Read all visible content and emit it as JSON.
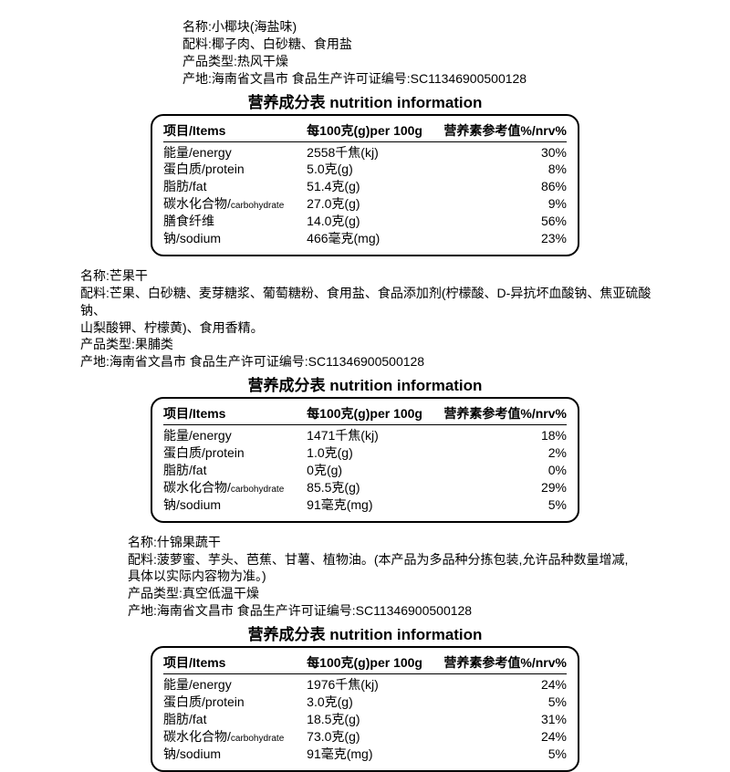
{
  "products": [
    {
      "indentClass": "indent-1",
      "info": [
        "名称:小椰块(海盐味)",
        "配料:椰子肉、白砂糖、食用盐",
        "产品类型:热风干燥",
        "产地:海南省文昌市 食品生产许可证编号:SC11346900500128"
      ],
      "table_title": "营养成分表 nutrition information",
      "headers": {
        "c1": "项目/Items",
        "c2": "每100克(g)per 100g",
        "c3": "营养素参考值%/nrv%"
      },
      "rows": [
        {
          "c1": "能量/energy",
          "c2": "2558千焦(kj)",
          "c3": "30%"
        },
        {
          "c1": "蛋白质/protein",
          "c2": "5.0克(g)",
          "c3": "8%"
        },
        {
          "c1": "脂肪/fat",
          "c2": "51.4克(g)",
          "c3": "86%"
        },
        {
          "c1": "碳水化合物/",
          "c1sub": "carbohydrate",
          "c2": "27.0克(g)",
          "c3": "9%"
        },
        {
          "c1": "膳食纤维",
          "c2": "14.0克(g)",
          "c3": "56%"
        },
        {
          "c1": "钠/sodium",
          "c2": "466毫克(mg)",
          "c3": "23%"
        }
      ]
    },
    {
      "indentClass": "indent-2",
      "info": [
        "名称:芒果干",
        "配料:芒果、白砂糖、麦芽糖浆、葡萄糖粉、食用盐、食品添加剂(柠檬酸、D-异抗坏血酸钠、焦亚硫酸钠、",
        "山梨酸钾、柠檬黄)、食用香精。",
        "产品类型:果脯类",
        "产地:海南省文昌市 食品生产许可证编号:SC11346900500128"
      ],
      "table_title": "营养成分表 nutrition information",
      "headers": {
        "c1": "项目/Items",
        "c2": "每100克(g)per 100g",
        "c3": "营养素参考值%/nrv%"
      },
      "rows": [
        {
          "c1": "能量/energy",
          "c2": "1471千焦(kj)",
          "c3": "18%"
        },
        {
          "c1": "蛋白质/protein",
          "c2": "1.0克(g)",
          "c3": "2%"
        },
        {
          "c1": "脂肪/fat",
          "c2": "0克(g)",
          "c3": "0%"
        },
        {
          "c1": "碳水化合物/",
          "c1sub": "carbohydrate",
          "c2": "85.5克(g)",
          "c3": "29%"
        },
        {
          "c1": "钠/sodium",
          "c2": "91毫克(mg)",
          "c3": "5%"
        }
      ]
    },
    {
      "indentClass": "indent-3",
      "info": [
        "名称:什锦果蔬干",
        "配料:菠萝蜜、芋头、芭蕉、甘薯、植物油。(本产品为多品种分拣包装,允许品种数量增减,",
        "具体以实际内容物为准。)",
        "产品类型:真空低温干燥",
        "产地:海南省文昌市 食品生产许可证编号:SC11346900500128"
      ],
      "table_title": "营养成分表 nutrition information",
      "headers": {
        "c1": "项目/Items",
        "c2": "每100克(g)per 100g",
        "c3": "营养素参考值%/nrv%"
      },
      "rows": [
        {
          "c1": "能量/energy",
          "c2": "1976千焦(kj)",
          "c3": "24%"
        },
        {
          "c1": "蛋白质/protein",
          "c2": "3.0克(g)",
          "c3": "5%"
        },
        {
          "c1": "脂肪/fat",
          "c2": "18.5克(g)",
          "c3": "31%"
        },
        {
          "c1": "碳水化合物/",
          "c1sub": "carbohydrate",
          "c2": "73.0克(g)",
          "c3": "24%"
        },
        {
          "c1": "钠/sodium",
          "c2": "91毫克(mg)",
          "c3": "5%"
        }
      ]
    }
  ]
}
